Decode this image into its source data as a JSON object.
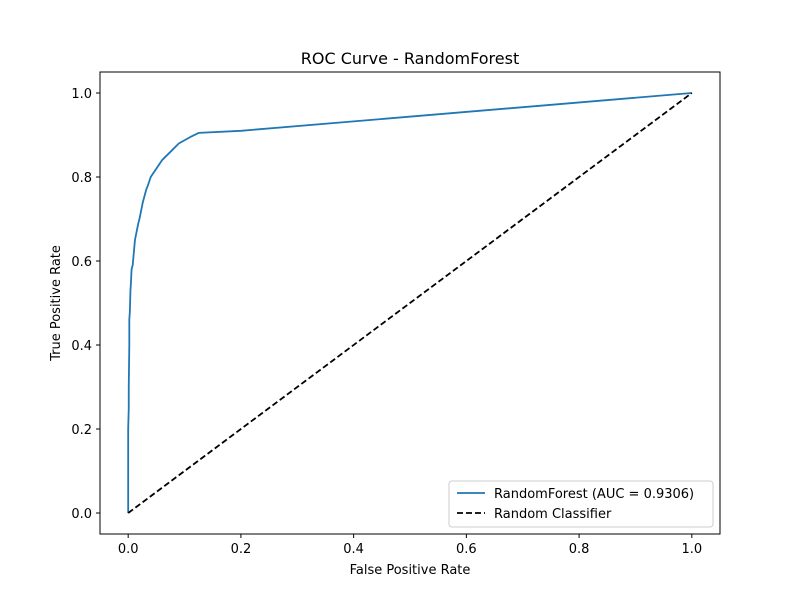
{
  "chart_data": {
    "type": "line",
    "title": "ROC Curve - RandomForest",
    "xlabel": "False Positive Rate",
    "ylabel": "True Positive Rate",
    "xlim": [
      -0.05,
      1.05
    ],
    "ylim": [
      -0.05,
      1.05
    ],
    "xticks": [
      "0.0",
      "0.2",
      "0.4",
      "0.6",
      "0.8",
      "1.0"
    ],
    "yticks": [
      "0.0",
      "0.2",
      "0.4",
      "0.6",
      "0.8",
      "1.0"
    ],
    "grid": false,
    "legend_position": "lower-right",
    "series": [
      {
        "name": "RandomForest (AUC = 0.9306)",
        "color": "#1f77b4",
        "style": "solid",
        "x": [
          0.0,
          0.0,
          0.001,
          0.001,
          0.002,
          0.002,
          0.003,
          0.004,
          0.005,
          0.006,
          0.008,
          0.01,
          0.012,
          0.015,
          0.018,
          0.02,
          0.023,
          0.026,
          0.028,
          0.032,
          0.035,
          0.04,
          0.045,
          0.05,
          0.06,
          0.075,
          0.09,
          0.11,
          0.125,
          0.2,
          1.0
        ],
        "y": [
          0.0,
          0.2,
          0.25,
          0.3,
          0.4,
          0.46,
          0.48,
          0.53,
          0.55,
          0.58,
          0.59,
          0.62,
          0.65,
          0.67,
          0.69,
          0.7,
          0.72,
          0.74,
          0.75,
          0.77,
          0.78,
          0.8,
          0.81,
          0.82,
          0.84,
          0.86,
          0.88,
          0.895,
          0.905,
          0.91,
          1.0
        ]
      },
      {
        "name": "Random Classifier",
        "color": "#000000",
        "style": "dashed",
        "x": [
          0.0,
          1.0
        ],
        "y": [
          0.0,
          1.0
        ]
      }
    ]
  }
}
